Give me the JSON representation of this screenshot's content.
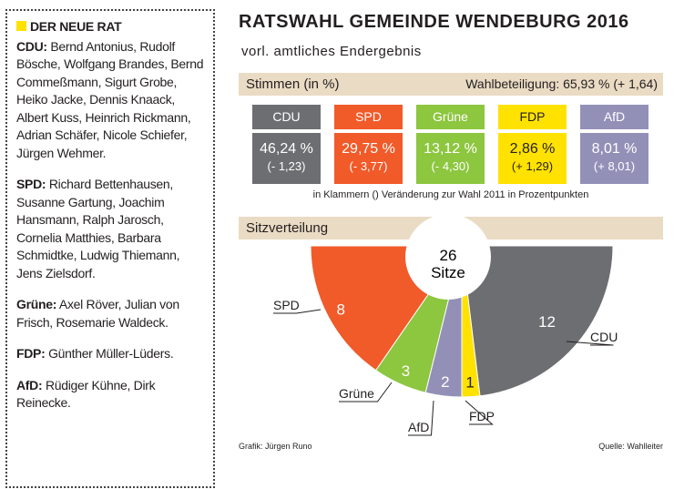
{
  "sidebar": {
    "title": "DER NEUE RAT",
    "entries": [
      {
        "party": "CDU:",
        "members": "Bernd Antonius, Rudolf Bösche, Wolfgang Brandes, Bernd Commeßmann, Sigurt Grobe, Heiko Jacke, Dennis Knaack, Albert Kuss, Heinrich Rickmann, Adrian Schäfer, Nicole Schiefer, Jürgen Wehmer."
      },
      {
        "party": "SPD:",
        "members": "Richard Bettenhausen, Susanne Gartung, Joachim Hansmann, Ralph Jarosch, Cornelia Matthies, Barbara Schmidtke, Ludwig Thiemann, Jens Zielsdorf."
      },
      {
        "party": "Grüne:",
        "members": "Axel Röver, Julian von Frisch, Rosemarie Waldeck."
      },
      {
        "party": "FDP:",
        "members": "Günther Müller-Lüders."
      },
      {
        "party": "AfD:",
        "members": "Rüdiger Kühne, Dirk Reinecke."
      }
    ]
  },
  "header": {
    "title": "RATSWAHL GEMEINDE WENDEBURG 2016",
    "subtitle": "vorl. amtliches Endergebnis"
  },
  "results": {
    "heading": "Stimmen (in %)",
    "turnout": "Wahlbeteiligung: 65,93 % (+ 1,64)",
    "parties": [
      {
        "name": "CDU",
        "share": "46,24 %",
        "change": "(- 1,23)",
        "color": "#6d6e71"
      },
      {
        "name": "SPD",
        "share": "29,75 %",
        "change": "(- 3,77)",
        "color": "#f15a29"
      },
      {
        "name": "Grüne",
        "share": "13,12 %",
        "change": "(- 4,30)",
        "color": "#8dc63f"
      },
      {
        "name": "FDP",
        "share": "2,86 %",
        "change": "(+ 1,29)",
        "color": "#ffe200"
      },
      {
        "name": "AfD",
        "share": "8,01 %",
        "change": "(+ 8,01)",
        "color": "#9390b8"
      }
    ],
    "note": "in Klammern () Veränderung zur Wahl 2011 in Prozentpunkten"
  },
  "chart_data": {
    "type": "pie",
    "title": "Sitzverteilung",
    "total": 26,
    "total_label": "Sitze",
    "categories": [
      "SPD",
      "Grüne",
      "AfD",
      "FDP",
      "CDU"
    ],
    "values": [
      8,
      3,
      2,
      1,
      12
    ],
    "colors": [
      "#f15a29",
      "#8dc63f",
      "#9390b8",
      "#ffe200",
      "#6d6e71"
    ]
  },
  "footer": {
    "credit": "Grafik: Jürgen Runo",
    "source": "Quelle: Wahlleiter"
  }
}
